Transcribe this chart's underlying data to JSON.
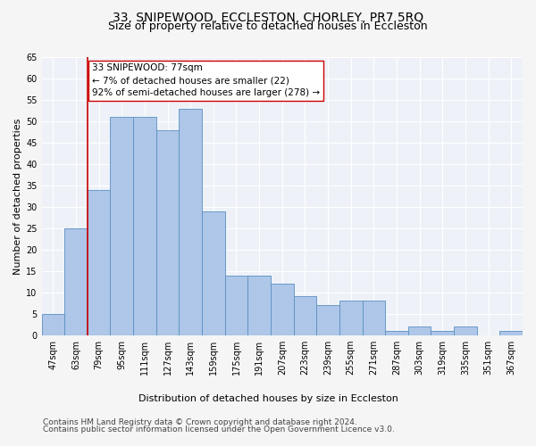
{
  "title": "33, SNIPEWOOD, ECCLESTON, CHORLEY, PR7 5RQ",
  "subtitle": "Size of property relative to detached houses in Eccleston",
  "xlabel": "Distribution of detached houses by size in Eccleston",
  "ylabel": "Number of detached properties",
  "categories": [
    "47sqm",
    "63sqm",
    "79sqm",
    "95sqm",
    "111sqm",
    "127sqm",
    "143sqm",
    "159sqm",
    "175sqm",
    "191sqm",
    "207sqm",
    "223sqm",
    "239sqm",
    "255sqm",
    "271sqm",
    "287sqm",
    "303sqm",
    "319sqm",
    "335sqm",
    "351sqm",
    "367sqm"
  ],
  "values": [
    5,
    25,
    34,
    51,
    51,
    48,
    53,
    29,
    14,
    14,
    12,
    9,
    7,
    8,
    8,
    1,
    2,
    1,
    2,
    0,
    1
  ],
  "bar_color": "#aec6e8",
  "bar_edge_color": "#5a8fc2",
  "highlight_color": "#cc0000",
  "annotation_text": "33 SNIPEWOOD: 77sqm\n← 7% of detached houses are smaller (22)\n92% of semi-detached houses are larger (278) →",
  "annotation_box_color": "#ffffff",
  "annotation_box_edge": "#cc0000",
  "ylim": [
    0,
    65
  ],
  "yticks": [
    0,
    5,
    10,
    15,
    20,
    25,
    30,
    35,
    40,
    45,
    50,
    55,
    60,
    65
  ],
  "footer1": "Contains HM Land Registry data © Crown copyright and database right 2024.",
  "footer2": "Contains public sector information licensed under the Open Government Licence v3.0.",
  "bg_color": "#eef2f8",
  "grid_color": "#ffffff",
  "fig_bg_color": "#f5f5f5",
  "title_fontsize": 10,
  "subtitle_fontsize": 9,
  "axis_label_fontsize": 8,
  "tick_fontsize": 7,
  "annotation_fontsize": 7.5,
  "footer_fontsize": 6.5
}
